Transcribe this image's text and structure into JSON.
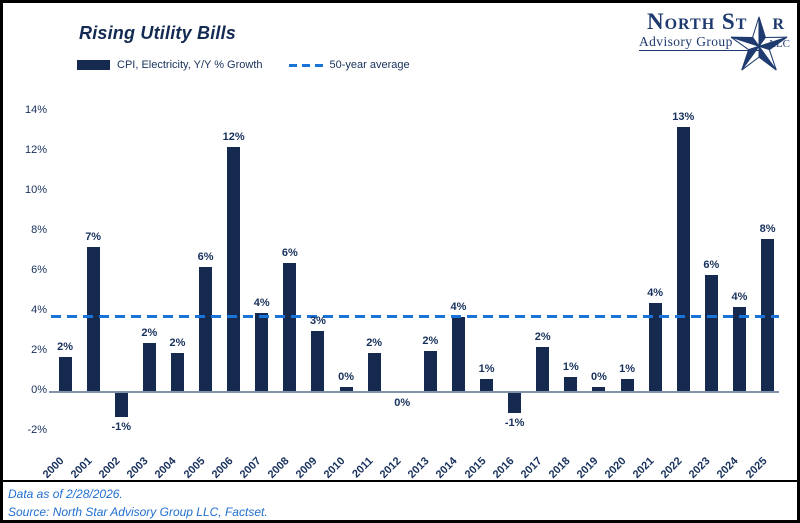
{
  "logo": {
    "name_start": "North St",
    "name_end": "r",
    "subtitle": "Advisory Group",
    "suffix": "LLC"
  },
  "chart_data": {
    "type": "bar",
    "title": "Rising Utility Bills",
    "series_name": "CPI, Electricity, Y/Y % Growth",
    "categories": [
      "2000",
      "2001",
      "2002",
      "2003",
      "2004",
      "2005",
      "2006",
      "2007",
      "2008",
      "2009",
      "2010",
      "2011",
      "2012",
      "2013",
      "2014",
      "2015",
      "2016",
      "2017",
      "2018",
      "2019",
      "2020",
      "2021",
      "2022",
      "2023",
      "2024",
      "2025"
    ],
    "values": [
      1.7,
      7.2,
      -1.2,
      2.4,
      1.9,
      6.2,
      12.2,
      3.9,
      6.4,
      3.0,
      0.2,
      1.9,
      0.0,
      2.0,
      3.7,
      0.6,
      -1.0,
      2.2,
      0.7,
      0.2,
      0.6,
      4.4,
      13.2,
      5.8,
      4.2,
      7.6
    ],
    "bar_labels": [
      "2%",
      "7%",
      "-1%",
      "2%",
      "2%",
      "6%",
      "12%",
      "4%",
      "6%",
      "3%",
      "0%",
      "2%",
      "0%",
      "2%",
      "4%",
      "1%",
      "-1%",
      "2%",
      "1%",
      "0%",
      "1%",
      "4%",
      "13%",
      "6%",
      "4%",
      "8%"
    ],
    "average_line": {
      "label": "50-year average",
      "value": 3.7
    },
    "y_ticks": [
      "14%",
      "12%",
      "10%",
      "8%",
      "6%",
      "4%",
      "2%",
      "0%",
      "-2%"
    ],
    "ylim": [
      -2,
      14
    ],
    "grid": false,
    "legend_position": "top",
    "bar_color": "#152a4e",
    "average_color": "#1a73d8"
  },
  "footer": {
    "line1": "Data as of 2/28/2026.",
    "line2": "Source: North Star Advisory Group LLC, Factset."
  }
}
